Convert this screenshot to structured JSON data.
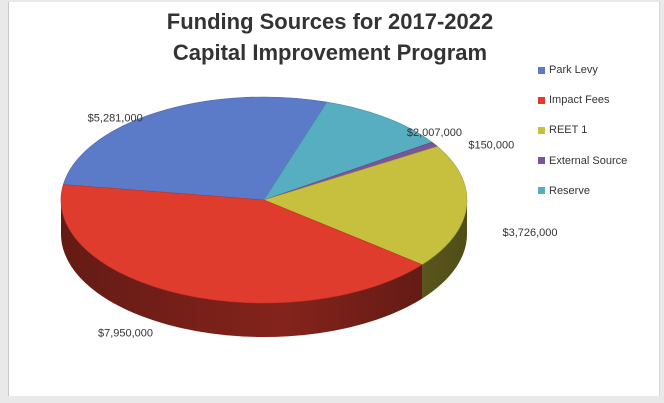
{
  "chart_data": {
    "type": "pie",
    "title": "Funding Sources for 2017-2022",
    "subtitle": "Capital Improvement Program",
    "categories": [
      "Park Levy",
      "Impact Fees",
      "REET 1",
      "External Source",
      "Reserve"
    ],
    "values": [
      5281000,
      7950000,
      3726000,
      150000,
      2007000
    ],
    "data_labels": [
      "$5,281,000",
      "$7,950,000",
      "$3,726,000",
      "$150,000",
      "$2,007,000"
    ],
    "colors": [
      "#5b7ac7",
      "#e03c2e",
      "#c7bf3e",
      "#7a5597",
      "#56aec0"
    ],
    "legend_position": "right",
    "style": "3d"
  }
}
